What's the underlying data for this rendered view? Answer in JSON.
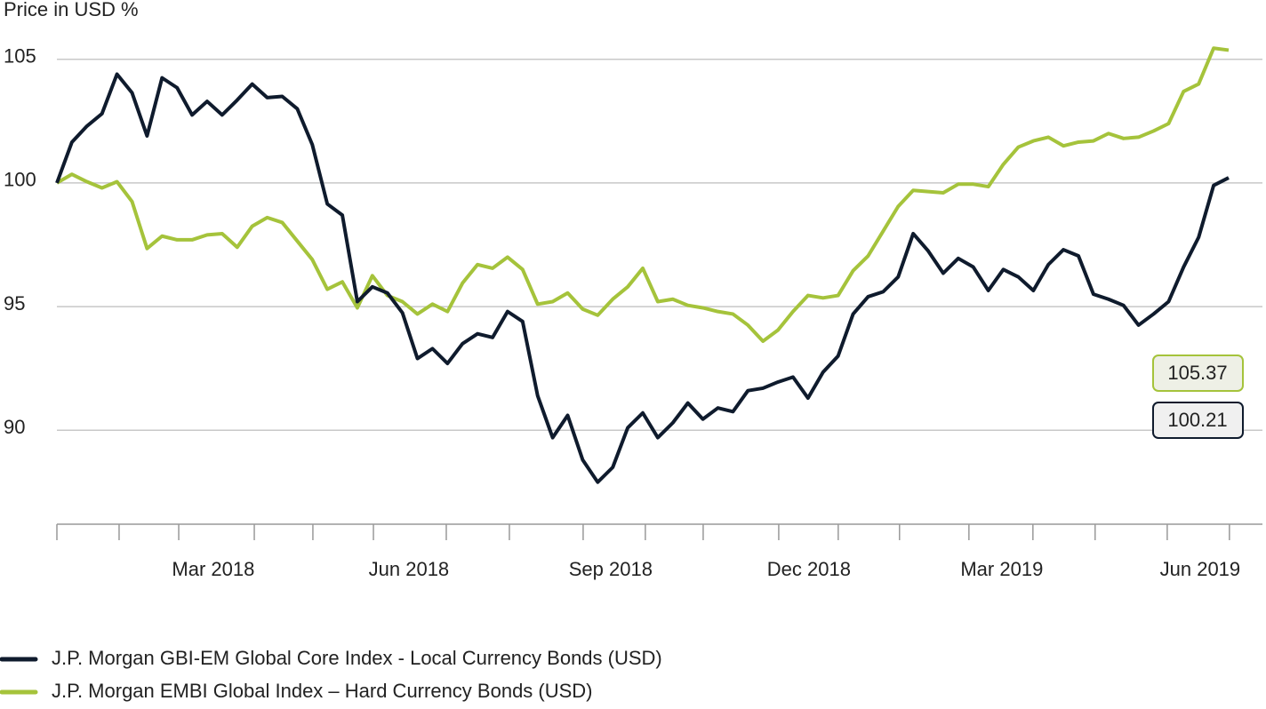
{
  "chart_data": {
    "type": "line",
    "y_axis_label": "Price in USD %",
    "x": [
      0,
      1,
      2,
      3,
      4,
      5,
      6,
      7,
      8,
      9,
      10,
      11,
      12,
      13,
      14,
      15,
      16,
      17,
      18,
      19,
      20,
      21,
      22,
      23,
      24,
      25,
      26,
      27,
      28,
      29,
      30,
      31,
      32,
      33,
      34,
      35,
      36,
      37,
      38,
      39,
      40,
      41,
      42,
      43,
      44,
      45,
      46,
      47,
      48,
      49,
      50,
      51,
      52,
      53,
      54,
      55,
      56,
      57,
      58,
      59,
      60,
      61,
      62,
      63,
      64,
      65,
      66,
      67,
      68,
      69,
      70,
      71,
      72,
      73,
      74,
      75,
      76,
      77,
      78
    ],
    "xlim": [
      0,
      78
    ],
    "xticks": [
      {
        "value": 10.41,
        "label": "Mar 2018"
      },
      {
        "value": 23.43,
        "label": "Jun 2018"
      },
      {
        "value": 36.86,
        "label": "Sep 2018"
      },
      {
        "value": 50.06,
        "label": "Dec 2018"
      },
      {
        "value": 62.9,
        "label": "Mar 2019"
      },
      {
        "value": 76.1,
        "label": "Jun 2019"
      }
    ],
    "x_tick_marks": [
      0,
      4.14,
      8.11,
      13.14,
      17.04,
      21.07,
      25.92,
      30.12,
      35.03,
      39.17,
      43.02,
      48.05,
      52.01,
      56.09,
      60.71,
      64.97,
      69.11,
      73.91,
      78.05
    ],
    "ylim": [
      86.2,
      106.5
    ],
    "yticks": [
      90,
      95,
      100,
      105
    ],
    "grid": true,
    "series": [
      {
        "name": "J.P. Morgan GBI-EM Global Core Index - Local Currency Bonds (USD)",
        "color": "#0f1b2d",
        "end_label": "100.21",
        "values": [
          100,
          101.65,
          102.3,
          102.8,
          104.4,
          103.65,
          101.9,
          104.25,
          103.85,
          102.75,
          103.3,
          102.75,
          103.35,
          104.0,
          103.45,
          103.5,
          103.0,
          101.55,
          99.15,
          98.7,
          95.2,
          95.8,
          95.55,
          94.75,
          92.9,
          93.3,
          92.7,
          93.5,
          93.9,
          93.75,
          94.8,
          94.4,
          91.4,
          89.7,
          90.6,
          88.8,
          87.9,
          88.5,
          90.1,
          90.7,
          89.7,
          90.3,
          91.1,
          90.45,
          90.9,
          90.75,
          91.6,
          91.7,
          91.95,
          92.15,
          91.3,
          92.35,
          93.0,
          94.7,
          95.4,
          95.6,
          96.2,
          97.95,
          97.25,
          96.35,
          96.95,
          96.6,
          95.65,
          96.5,
          96.2,
          95.65,
          96.7,
          97.3,
          97.05,
          95.5,
          95.3,
          95.05,
          94.25,
          94.7,
          95.2,
          96.6,
          97.8,
          99.9,
          100.21
        ]
      },
      {
        "name": "J.P. Morgan EMBI Global Index – Hard Currency Bonds (USD)",
        "color": "#a5c33b",
        "end_label": "105.37",
        "values": [
          100,
          100.35,
          100.05,
          99.8,
          100.05,
          99.25,
          97.35,
          97.85,
          97.7,
          97.7,
          97.9,
          97.95,
          97.4,
          98.25,
          98.6,
          98.4,
          97.65,
          96.9,
          95.7,
          96.0,
          94.95,
          96.25,
          95.45,
          95.2,
          94.7,
          95.1,
          94.8,
          95.95,
          96.7,
          96.55,
          97.0,
          96.5,
          95.1,
          95.2,
          95.55,
          94.9,
          94.65,
          95.3,
          95.8,
          96.55,
          95.2,
          95.3,
          95.05,
          94.95,
          94.8,
          94.7,
          94.25,
          93.6,
          94.05,
          94.8,
          95.45,
          95.35,
          95.45,
          96.45,
          97.05,
          98.05,
          99.05,
          99.7,
          99.65,
          99.6,
          99.95,
          99.95,
          99.85,
          100.75,
          101.45,
          101.7,
          101.85,
          101.5,
          101.65,
          101.7,
          102.0,
          101.8,
          101.85,
          102.1,
          102.4,
          103.7,
          104.0,
          105.45,
          105.37
        ]
      }
    ]
  }
}
